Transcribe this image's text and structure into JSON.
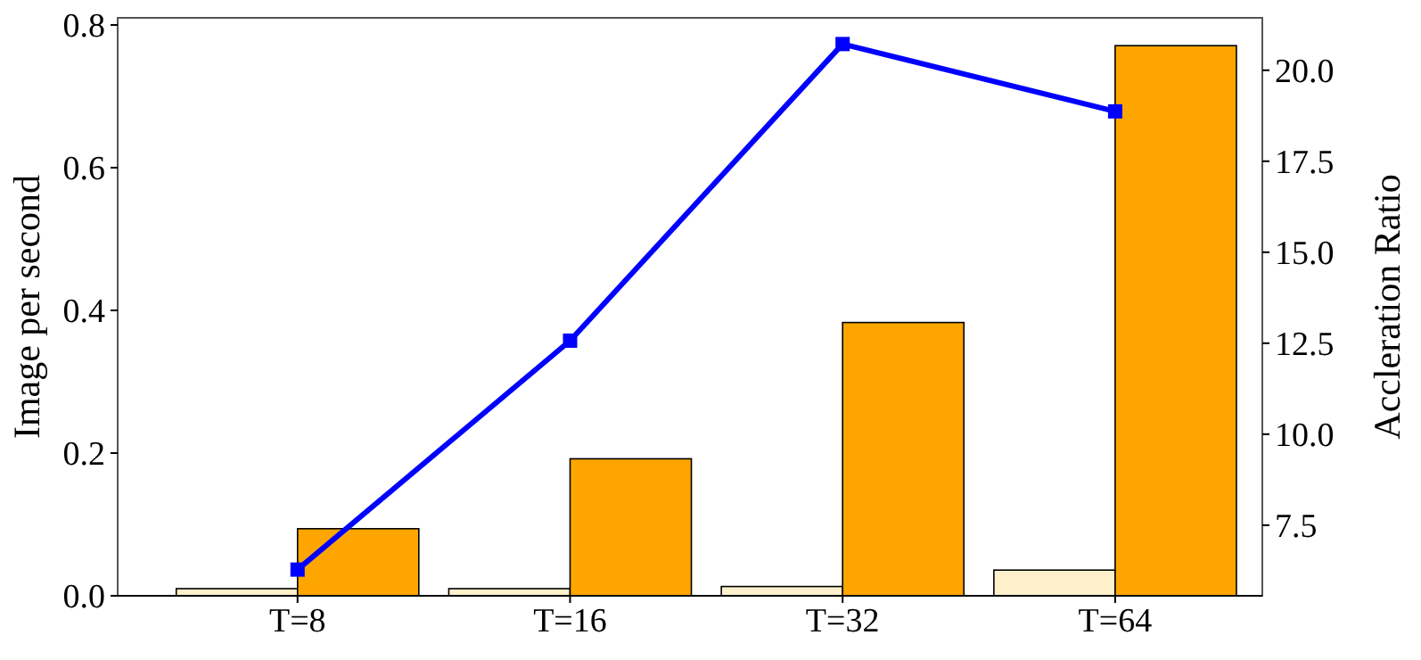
{
  "chart_data": {
    "type": "bar",
    "categories": [
      "T=8",
      "T=16",
      "T=32",
      "T=64"
    ],
    "ylabel": "Image per second",
    "y2label": "Accleration Ratio",
    "ylim": [
      0,
      0.81
    ],
    "yticks": [
      {
        "value": 0,
        "label": "0.0"
      },
      {
        "value": 0.2,
        "label": "0.2"
      },
      {
        "value": 0.4,
        "label": "0.4"
      },
      {
        "value": 0.6,
        "label": "0.6"
      },
      {
        "value": 0.8,
        "label": "0.8"
      }
    ],
    "y2lim": [
      5.56,
      21.44
    ],
    "y2ticks": [
      {
        "value": 7.5,
        "label": "7.5"
      },
      {
        "value": 10,
        "label": "10.0"
      },
      {
        "value": 12.5,
        "label": "12.5"
      },
      {
        "value": 15,
        "label": "15.0"
      },
      {
        "value": 17.5,
        "label": "17.5"
      },
      {
        "value": 20,
        "label": "20.0"
      }
    ],
    "grid": false,
    "series": [
      {
        "color": "#fff0cc",
        "values": [
          0.01,
          0.01,
          0.013,
          0.036
        ]
      },
      {
        "color": "#ffa500",
        "values": [
          0.094,
          0.192,
          0.383,
          0.771
        ]
      },
      {
        "type": "line",
        "axis": "y2",
        "color": "#0000ff",
        "marker": "square",
        "line_style": "solid",
        "values": [
          6.28,
          12.57,
          20.72,
          18.87
        ]
      }
    ]
  }
}
